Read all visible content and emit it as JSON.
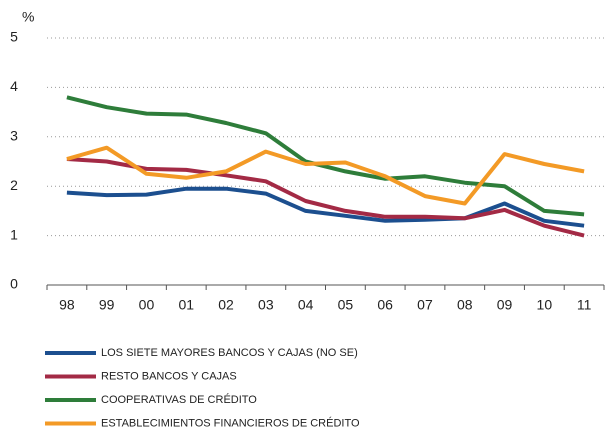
{
  "chart_data": {
    "type": "line",
    "y_label": "%",
    "categories": [
      "98",
      "99",
      "00",
      "01",
      "02",
      "03",
      "04",
      "05",
      "06",
      "07",
      "08",
      "09",
      "10",
      "11"
    ],
    "ylim": [
      0,
      5
    ],
    "yticks": [
      0,
      1,
      2,
      3,
      4,
      5
    ],
    "grid": true,
    "series": [
      {
        "name": "LOS SIETE MAYORES BANCOS Y CAJAS (NO SE)",
        "color": "#1c4f8f",
        "values": [
          1.87,
          1.82,
          1.83,
          1.95,
          1.95,
          1.85,
          1.5,
          1.4,
          1.3,
          1.32,
          1.35,
          1.65,
          1.3,
          1.2
        ]
      },
      {
        "name": "RESTO BANCOS Y CAJAS",
        "color": "#a32a45",
        "values": [
          2.55,
          2.5,
          2.35,
          2.33,
          2.22,
          2.1,
          1.7,
          1.5,
          1.38,
          1.38,
          1.35,
          1.52,
          1.2,
          1.0
        ]
      },
      {
        "name": "COOPERATIVAS DE CRÉDITO",
        "color": "#2e7d3a",
        "values": [
          3.8,
          3.6,
          3.47,
          3.45,
          3.28,
          3.07,
          2.5,
          2.3,
          2.15,
          2.2,
          2.07,
          2.0,
          1.5,
          1.43
        ]
      },
      {
        "name": "ESTABLECIMIENTOS FINANCIEROS DE CRÉDITO",
        "color": "#f39a26",
        "values": [
          2.55,
          2.78,
          2.25,
          2.17,
          2.3,
          2.7,
          2.45,
          2.48,
          2.2,
          1.8,
          1.65,
          2.65,
          2.45,
          2.3
        ]
      }
    ]
  }
}
